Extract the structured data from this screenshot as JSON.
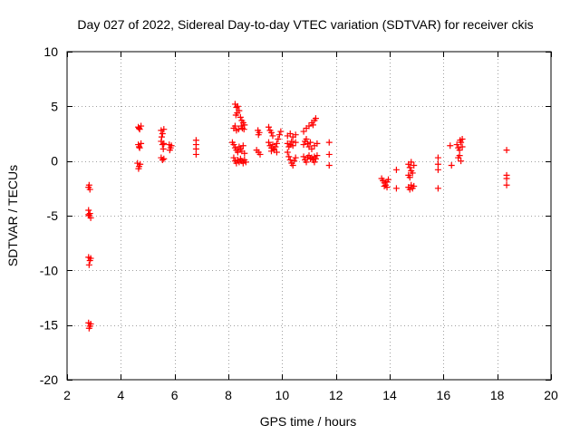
{
  "chart_data": {
    "type": "scatter",
    "title": "Day 027 of 2022, Sidereal Day-to-day VTEC variation (SDTVAR) for receiver ckis",
    "xlabel": "GPS time / hours",
    "ylabel": "SDTVAR / TECUs",
    "xlim": [
      2,
      20
    ],
    "ylim": [
      -20,
      10
    ],
    "xticks": [
      2,
      4,
      6,
      8,
      10,
      12,
      14,
      16,
      18,
      20
    ],
    "yticks": [
      -20,
      -15,
      -10,
      -5,
      0,
      5,
      10
    ],
    "grid": true,
    "marker": "+",
    "series": [
      {
        "name": "SDTVAR",
        "color": "#ff0000",
        "points": [
          [
            2.8,
            -2.4
          ],
          [
            2.85,
            -2.6
          ],
          [
            2.82,
            -2.2
          ],
          [
            2.8,
            -4.5
          ],
          [
            2.85,
            -4.8
          ],
          [
            2.82,
            -5.0
          ],
          [
            2.88,
            -5.2
          ],
          [
            2.8,
            -4.9
          ],
          [
            2.8,
            -8.8
          ],
          [
            2.85,
            -9.1
          ],
          [
            2.82,
            -9.5
          ],
          [
            2.88,
            -8.9
          ],
          [
            2.8,
            -14.8
          ],
          [
            2.85,
            -15.1
          ],
          [
            2.82,
            -15.3
          ],
          [
            2.88,
            -14.9
          ],
          [
            4.65,
            3.1
          ],
          [
            4.7,
            2.9
          ],
          [
            4.75,
            3.2
          ],
          [
            4.68,
            3.0
          ],
          [
            4.65,
            1.5
          ],
          [
            4.7,
            1.2
          ],
          [
            4.75,
            1.6
          ],
          [
            4.68,
            1.3
          ],
          [
            4.62,
            -0.2
          ],
          [
            4.68,
            -0.5
          ],
          [
            4.72,
            -0.3
          ],
          [
            4.66,
            -0.7
          ],
          [
            5.5,
            2.8
          ],
          [
            5.55,
            2.5
          ],
          [
            5.6,
            2.9
          ],
          [
            5.52,
            2.2
          ],
          [
            5.5,
            1.8
          ],
          [
            5.55,
            1.5
          ],
          [
            5.6,
            1.6
          ],
          [
            5.58,
            1.1
          ],
          [
            5.5,
            0.3
          ],
          [
            5.55,
            0.1
          ],
          [
            5.6,
            0.2
          ],
          [
            5.8,
            1.5
          ],
          [
            5.85,
            1.2
          ],
          [
            5.82,
            1.0
          ],
          [
            5.88,
            1.4
          ],
          [
            6.8,
            1.9
          ],
          [
            6.8,
            1.5
          ],
          [
            6.8,
            1.1
          ],
          [
            6.8,
            0.6
          ],
          [
            8.15,
            1.7
          ],
          [
            8.25,
            5.2
          ],
          [
            8.3,
            4.9
          ],
          [
            8.35,
            5.0
          ],
          [
            8.4,
            4.6
          ],
          [
            8.28,
            4.2
          ],
          [
            8.33,
            4.4
          ],
          [
            8.45,
            4.0
          ],
          [
            8.5,
            3.7
          ],
          [
            8.55,
            3.5
          ],
          [
            8.48,
            3.2
          ],
          [
            8.52,
            3.0
          ],
          [
            8.6,
            3.3
          ],
          [
            8.58,
            2.9
          ],
          [
            8.2,
            3.0
          ],
          [
            8.25,
            3.2
          ],
          [
            8.3,
            2.8
          ],
          [
            8.38,
            2.9
          ],
          [
            8.2,
            1.5
          ],
          [
            8.25,
            1.2
          ],
          [
            8.3,
            1.0
          ],
          [
            8.35,
            0.8
          ],
          [
            8.4,
            1.3
          ],
          [
            8.45,
            1.1
          ],
          [
            8.5,
            0.9
          ],
          [
            8.55,
            1.4
          ],
          [
            8.6,
            0.7
          ],
          [
            8.2,
            0.3
          ],
          [
            8.25,
            0.0
          ],
          [
            8.3,
            -0.2
          ],
          [
            8.35,
            0.1
          ],
          [
            8.4,
            -0.1
          ],
          [
            8.45,
            0.2
          ],
          [
            8.5,
            0.0
          ],
          [
            8.55,
            -0.2
          ],
          [
            8.6,
            0.1
          ],
          [
            8.65,
            -0.1
          ],
          [
            9.1,
            2.8
          ],
          [
            9.15,
            2.6
          ],
          [
            9.12,
            2.4
          ],
          [
            9.05,
            1.0
          ],
          [
            9.12,
            0.8
          ],
          [
            9.18,
            0.6
          ],
          [
            9.5,
            3.1
          ],
          [
            9.55,
            2.8
          ],
          [
            9.6,
            2.6
          ],
          [
            9.65,
            2.3
          ],
          [
            9.5,
            1.7
          ],
          [
            9.55,
            1.4
          ],
          [
            9.6,
            1.2
          ],
          [
            9.65,
            1.5
          ],
          [
            9.7,
            1.1
          ],
          [
            9.75,
            1.3
          ],
          [
            9.8,
            1.6
          ],
          [
            9.85,
            2.0
          ],
          [
            9.9,
            2.4
          ],
          [
            9.95,
            2.7
          ],
          [
            9.6,
            0.9
          ],
          [
            9.7,
            1.0
          ],
          [
            9.8,
            0.8
          ],
          [
            10.2,
            0.8
          ],
          [
            10.25,
            0.4
          ],
          [
            10.3,
            0.1
          ],
          [
            10.35,
            -0.2
          ],
          [
            10.4,
            -0.4
          ],
          [
            10.45,
            0.0
          ],
          [
            10.5,
            0.3
          ],
          [
            10.2,
            1.6
          ],
          [
            10.25,
            1.3
          ],
          [
            10.3,
            1.5
          ],
          [
            10.35,
            1.8
          ],
          [
            10.4,
            1.4
          ],
          [
            10.5,
            1.7
          ],
          [
            10.2,
            2.3
          ],
          [
            10.3,
            2.5
          ],
          [
            10.4,
            2.2
          ],
          [
            10.5,
            2.4
          ],
          [
            10.8,
            0.4
          ],
          [
            10.85,
            0.1
          ],
          [
            10.9,
            -0.1
          ],
          [
            10.95,
            0.3
          ],
          [
            11.0,
            0.5
          ],
          [
            11.05,
            0.2
          ],
          [
            10.8,
            1.5
          ],
          [
            10.85,
            1.8
          ],
          [
            10.9,
            2.0
          ],
          [
            10.95,
            1.6
          ],
          [
            11.0,
            1.3
          ],
          [
            11.05,
            1.7
          ],
          [
            10.8,
            2.7
          ],
          [
            10.9,
            3.0
          ],
          [
            11.0,
            3.2
          ],
          [
            11.1,
            3.5
          ],
          [
            11.2,
            3.7
          ],
          [
            11.25,
            3.9
          ],
          [
            11.15,
            3.3
          ],
          [
            11.1,
            0.3
          ],
          [
            11.15,
            0.1
          ],
          [
            11.2,
            0.4
          ],
          [
            11.25,
            0.2
          ],
          [
            11.3,
            0.5
          ],
          [
            11.2,
            -0.1
          ],
          [
            11.1,
            1.1
          ],
          [
            11.2,
            1.4
          ],
          [
            11.3,
            1.6
          ],
          [
            11.75,
            1.7
          ],
          [
            11.75,
            0.6
          ],
          [
            11.75,
            -0.4
          ],
          [
            13.7,
            -1.6
          ],
          [
            13.75,
            -1.8
          ],
          [
            13.8,
            -2.0
          ],
          [
            13.85,
            -2.2
          ],
          [
            13.9,
            -1.9
          ],
          [
            13.95,
            -1.7
          ],
          [
            13.8,
            -2.3
          ],
          [
            13.9,
            -2.4
          ],
          [
            14.25,
            -0.8
          ],
          [
            14.25,
            -2.5
          ],
          [
            14.7,
            -0.3
          ],
          [
            14.75,
            -0.6
          ],
          [
            14.8,
            -0.9
          ],
          [
            14.85,
            -1.1
          ],
          [
            14.7,
            -1.3
          ],
          [
            14.8,
            -0.1
          ],
          [
            14.9,
            -0.4
          ],
          [
            14.75,
            -1.5
          ],
          [
            14.7,
            -2.4
          ],
          [
            14.75,
            -2.6
          ],
          [
            14.8,
            -2.2
          ],
          [
            14.85,
            -2.5
          ],
          [
            14.9,
            -2.3
          ],
          [
            15.8,
            0.3
          ],
          [
            15.8,
            -0.3
          ],
          [
            15.8,
            -0.8
          ],
          [
            15.8,
            -2.5
          ],
          [
            16.25,
            1.4
          ],
          [
            16.3,
            -0.4
          ],
          [
            16.5,
            1.5
          ],
          [
            16.55,
            1.2
          ],
          [
            16.6,
            1.0
          ],
          [
            16.65,
            1.7
          ],
          [
            16.7,
            2.0
          ],
          [
            16.6,
            0.5
          ],
          [
            16.55,
            0.3
          ],
          [
            16.65,
            0.0
          ],
          [
            16.7,
            1.3
          ],
          [
            16.62,
            1.9
          ],
          [
            18.35,
            1.0
          ],
          [
            18.35,
            -1.3
          ],
          [
            18.35,
            -1.6
          ],
          [
            18.35,
            -2.2
          ]
        ]
      }
    ]
  }
}
